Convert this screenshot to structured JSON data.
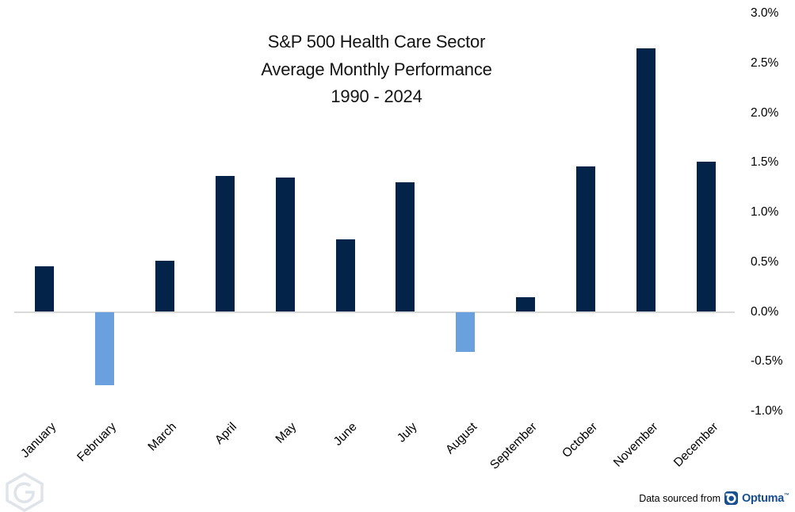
{
  "title": {
    "line1": "S&P 500 Health Care Sector",
    "line2": "Average Monthly Performance",
    "line3": "1990 - 2024"
  },
  "chart_data": {
    "type": "bar",
    "title": "S&P 500 Health Care Sector Average Monthly Performance 1990 - 2024",
    "categories": [
      "January",
      "February",
      "March",
      "April",
      "May",
      "June",
      "July",
      "August",
      "September",
      "October",
      "November",
      "December"
    ],
    "values": [
      0.46,
      -0.74,
      0.51,
      1.37,
      1.35,
      0.73,
      1.3,
      -0.4,
      0.15,
      1.46,
      2.65,
      1.51
    ],
    "xlabel": "",
    "ylabel": "",
    "ylim": [
      -1.0,
      3.0
    ],
    "yticks": [
      {
        "value": 3.0,
        "label": "3.0%"
      },
      {
        "value": 2.5,
        "label": "2.5%"
      },
      {
        "value": 2.0,
        "label": "2.0%"
      },
      {
        "value": 1.5,
        "label": "1.5%"
      },
      {
        "value": 1.0,
        "label": "1.0%"
      },
      {
        "value": 0.5,
        "label": "0.5%"
      },
      {
        "value": 0.0,
        "label": "0.0%"
      },
      {
        "value": -0.5,
        "label": "-0.5%"
      },
      {
        "value": -1.0,
        "label": "-1.0%"
      }
    ],
    "grid": false,
    "legend": "none",
    "positive_color": "#032349",
    "negative_color": "#6BA0DE",
    "axis_line_color": "#D9D9D9"
  },
  "footer": {
    "source_text": "Data sourced from",
    "brand": "Optuma",
    "brand_mark": "™",
    "brand_color": "#174F91"
  },
  "watermark": {
    "letter": "G",
    "color": "#DFE3EA"
  }
}
